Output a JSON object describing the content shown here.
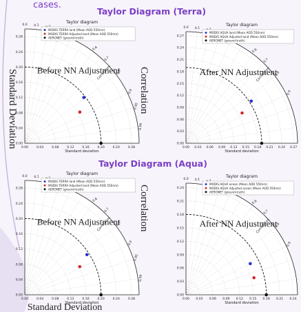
{
  "slide": {
    "top_text": "cases.",
    "terra_title": "Taylor Diagram (Terra)",
    "aqua_title": "Taylor Diagram (Aqua)",
    "side_label_std": "Standard Deviation",
    "side_label_corr": "Correlation",
    "bottom_label": "Standard Deviation",
    "colors": {
      "title": "#7b3fc6",
      "red": "#d6262b",
      "blue": "#2433c9",
      "black": "#111111"
    }
  },
  "panels": [
    {
      "title": "Taylor diagram",
      "overlay": "Before NN Adjustment",
      "xlabel": "Standard deviation",
      "corr_label": "Correlation",
      "axis_ticks": [
        "0.00",
        "0.04",
        "0.08",
        "0.12",
        "0.16",
        "0.20",
        "0.24",
        "0.28"
      ],
      "corr_ticks": [
        "0.0",
        "0.1",
        "0.2",
        "0.6",
        "0.7",
        "0.8",
        "0.9",
        "0.95",
        "0.99"
      ],
      "legend": [
        {
          "label": "MODIS TERRA land (Mean AOD 550nm)",
          "color": "#2433c9"
        },
        {
          "label": "MODIS TERRA Adjusted land (Mean AOD 550nm)",
          "color": "#d6262b"
        },
        {
          "label": "AERONET (ground-truth)",
          "color": "#111111"
        }
      ],
      "axis_max": 0.3,
      "ref": 0.2,
      "points": [
        {
          "name": "blue",
          "std": 0.196,
          "corr": 0.79,
          "color": "#2433c9"
        },
        {
          "name": "red",
          "std": 0.166,
          "corr": 0.87,
          "color": "#d6262b"
        },
        {
          "name": "black",
          "std": 0.2,
          "corr": 1.0,
          "color": "#111111"
        }
      ]
    },
    {
      "title": "Taylor diagram",
      "overlay": "After NN Adjustment",
      "xlabel": "Standard deviation",
      "corr_label": "Correlation",
      "axis_ticks": [
        "0.00",
        "0.03",
        "0.06",
        "0.09",
        "0.12",
        "0.15",
        "0.18",
        "0.21",
        "0.24",
        "0.27"
      ],
      "corr_ticks": [
        "0.0",
        "0.1",
        "0.2",
        "0.6",
        "0.7",
        "0.8",
        "0.9"
      ],
      "legend": [
        {
          "label": "MODIS AQUA land (Mean AOD 550nm)",
          "color": "#2433c9"
        },
        {
          "label": "MODIS AQUA Adjusted land (Mean AOD 550nm)",
          "color": "#d6262b"
        },
        {
          "label": "AERONET (ground-truth)",
          "color": "#111111"
        }
      ],
      "axis_max": 0.28,
      "ref": 0.19,
      "points": [
        {
          "name": "blue",
          "std": 0.195,
          "corr": 0.84,
          "color": "#2433c9"
        },
        {
          "name": "red",
          "std": 0.16,
          "corr": 0.88,
          "color": "#d6262b"
        },
        {
          "name": "black",
          "std": 0.19,
          "corr": 1.0,
          "color": "#111111"
        }
      ]
    },
    {
      "title": "Taylor diagram",
      "overlay": "Before NN Adjustment",
      "xlabel": "Standard deviation",
      "corr_label": "Correlation",
      "axis_ticks": [
        "0.00",
        "0.04",
        "0.08",
        "0.12",
        "0.16",
        "0.20",
        "0.24",
        "0.28"
      ],
      "corr_ticks": [
        "0.0",
        "0.1",
        "0.2",
        "0.6",
        "0.7",
        "0.8",
        "0.9",
        "0.95",
        "0.99"
      ],
      "legend": [
        {
          "label": "MODIS TERRA land (Mean AOD 550nm)",
          "color": "#2433c9"
        },
        {
          "label": "MODIS TERRA Adjusted land (Mean AOD 550nm)",
          "color": "#d6262b"
        },
        {
          "label": "AERONET (ground-truth)",
          "color": "#111111"
        }
      ],
      "axis_max": 0.3,
      "ref": 0.2,
      "points": [
        {
          "name": "blue",
          "std": 0.194,
          "corr": 0.84,
          "color": "#2433c9"
        },
        {
          "name": "red",
          "std": 0.162,
          "corr": 0.89,
          "color": "#d6262b"
        },
        {
          "name": "black",
          "std": 0.2,
          "corr": 1.0,
          "color": "#111111"
        }
      ]
    },
    {
      "title": "Taylor diagram",
      "overlay": "After NN Adjustment",
      "xlabel": "Standard deviation",
      "corr_label": "Correlation",
      "axis_ticks": [
        "0.00",
        "0.03",
        "0.06",
        "0.09",
        "0.12",
        "0.15",
        "0.18",
        "0.21",
        "0.24"
      ],
      "corr_ticks": [
        "0.0",
        "0.1",
        "0.2",
        "0.6",
        "0.7",
        "0.8",
        "0.9"
      ],
      "legend": [
        {
          "label": "MODIS AQUA ocean (Mean AOD 550nm)",
          "color": "#2433c9"
        },
        {
          "label": "MODIS AQUA Adjusted ocean (Mean AOD 550nm)",
          "color": "#d6262b"
        },
        {
          "label": "AERONET (ground-truth)",
          "color": "#111111"
        }
      ],
      "axis_max": 0.25,
      "ref": 0.18,
      "points": [
        {
          "name": "blue",
          "std": 0.16,
          "corr": 0.9,
          "color": "#2433c9"
        },
        {
          "name": "red",
          "std": 0.157,
          "corr": 0.97,
          "color": "#d6262b"
        },
        {
          "name": "black",
          "std": 0.18,
          "corr": 1.0,
          "color": "#111111"
        }
      ]
    }
  ]
}
